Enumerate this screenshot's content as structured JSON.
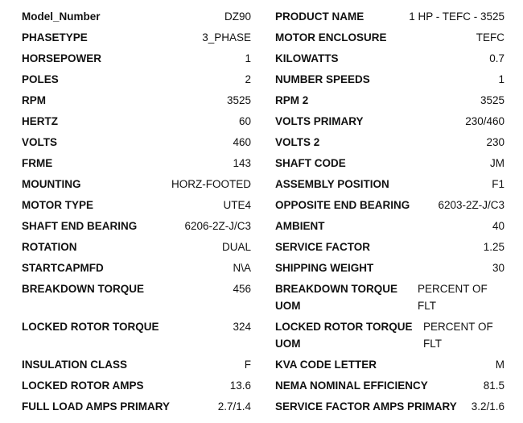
{
  "rows": [
    {
      "l": "Model_Number",
      "lv": "DZ90",
      "r": "PRODUCT NAME",
      "rv": "1 HP - TEFC - 3525"
    },
    {
      "l": "PHASETYPE",
      "lv": "3_PHASE",
      "r": "MOTOR ENCLOSURE",
      "rv": "TEFC"
    },
    {
      "l": "HORSEPOWER",
      "lv": "1",
      "r": "KILOWATTS",
      "rv": "0.7"
    },
    {
      "l": "POLES",
      "lv": "2",
      "r": "NUMBER SPEEDS",
      "rv": "1"
    },
    {
      "l": "RPM",
      "lv": "3525",
      "r": "RPM 2",
      "rv": "3525"
    },
    {
      "l": "HERTZ",
      "lv": "60",
      "r": "VOLTS PRIMARY",
      "rv": "230/460"
    },
    {
      "l": "VOLTS",
      "lv": "460",
      "r": "VOLTS 2",
      "rv": "230"
    },
    {
      "l": "FRME",
      "lv": "143",
      "r": "SHAFT CODE",
      "rv": "JM"
    },
    {
      "l": "MOUNTING",
      "lv": "HORZ-FOOTED",
      "r": "ASSEMBLY POSITION",
      "rv": "F1"
    },
    {
      "l": "MOTOR TYPE",
      "lv": "UTE4",
      "r": "OPPOSITE END BEARING",
      "rv": "6203-2Z-J/C3"
    },
    {
      "l": "SHAFT END BEARING",
      "lv": "6206-2Z-J/C3",
      "r": "AMBIENT",
      "rv": "40"
    },
    {
      "l": "ROTATION",
      "lv": "DUAL",
      "r": "SERVICE FACTOR",
      "rv": "1.25"
    },
    {
      "l": "STARTCAPMFD",
      "lv": "N\\A",
      "r": "SHIPPING WEIGHT",
      "rv": "30"
    },
    {
      "l": "BREAKDOWN TORQUE",
      "lv": "456",
      "r": "BREAKDOWN TORQUE UOM",
      "rv": "PERCENT OF FLT"
    },
    {
      "l": "LOCKED ROTOR TORQUE",
      "lv": "324",
      "r": "LOCKED ROTOR TORQUE UOM",
      "rv": "PERCENT OF FLT"
    },
    {
      "l": "INSULATION CLASS",
      "lv": "F",
      "r": "KVA CODE LETTER",
      "rv": "M"
    },
    {
      "l": "LOCKED ROTOR AMPS",
      "lv": "13.6",
      "r": "NEMA NOMINAL EFFICIENCY",
      "rv": "81.5"
    },
    {
      "l": "FULL LOAD AMPS PRIMARY",
      "lv": "2.7/1.4",
      "r": "SERVICE FACTOR AMPS PRIMARY",
      "rv": "3.2/1.6"
    }
  ]
}
